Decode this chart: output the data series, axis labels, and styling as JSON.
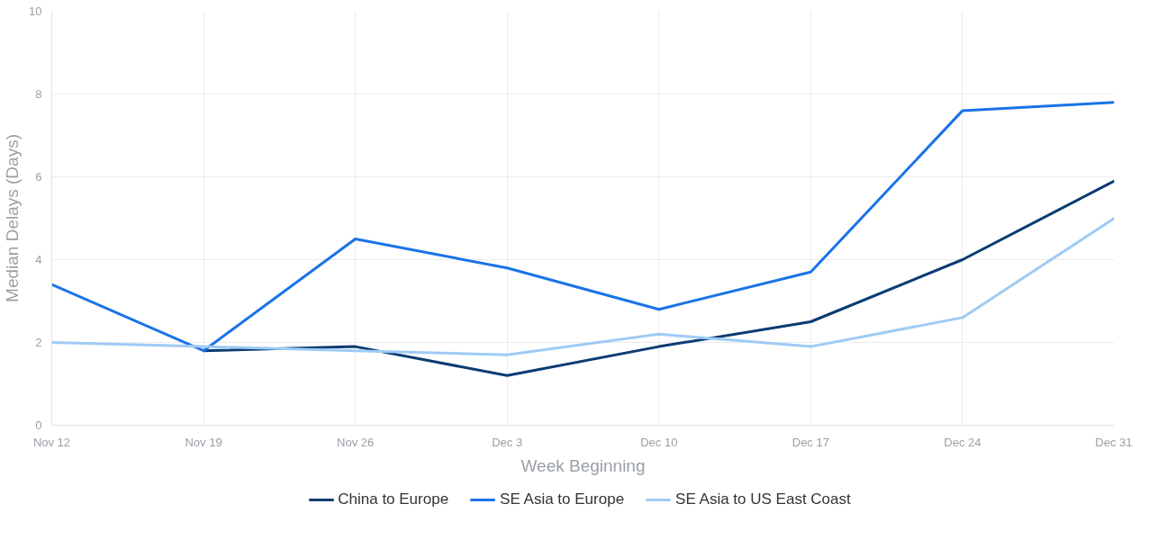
{
  "chart_data": {
    "type": "line",
    "xlabel": "Week Beginning",
    "ylabel": "Median Delays (Days)",
    "categories": [
      "Nov 12",
      "Nov 19",
      "Nov 26",
      "Dec 3",
      "Dec 10",
      "Dec 17",
      "Dec 24",
      "Dec 31"
    ],
    "series": [
      {
        "name": "China to Europe",
        "color": "#0b3b73",
        "values": [
          null,
          1.8,
          1.9,
          1.2,
          1.9,
          2.5,
          4.0,
          5.9
        ]
      },
      {
        "name": "SE Asia to Europe",
        "color": "#1a73e8",
        "values": [
          3.4,
          1.8,
          4.5,
          3.8,
          2.8,
          3.7,
          7.6,
          7.8
        ]
      },
      {
        "name": "SE Asia to US East Coast",
        "color": "#9ecbf5",
        "values": [
          2.0,
          1.9,
          1.8,
          1.7,
          2.2,
          1.9,
          2.6,
          5.0
        ]
      }
    ],
    "ylim": [
      0,
      10
    ],
    "yticks": [
      0,
      2,
      4,
      6,
      8,
      10
    ],
    "grid": true,
    "legend": "bottom",
    "marker": "none",
    "line_style": "solid"
  }
}
